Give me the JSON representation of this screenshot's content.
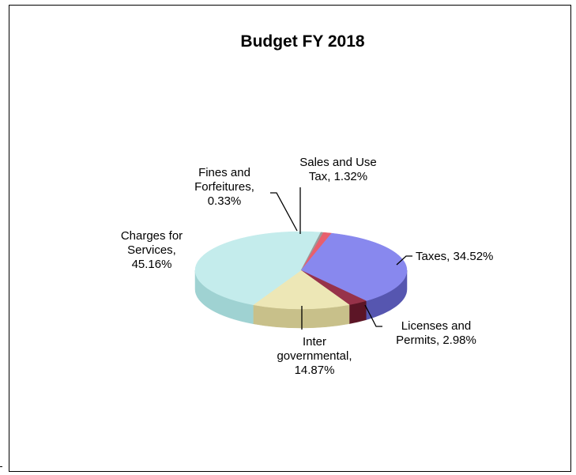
{
  "chart_data": {
    "type": "pie",
    "style": "3d",
    "title": "Budget FY 2018",
    "slices": [
      {
        "label": "Sales and Use Tax",
        "value": 1.32,
        "display": "1.32%",
        "color": "#e85f6d",
        "side": "#a8343f",
        "label_lines": [
          "Sales and Use",
          "Tax, 1.32%"
        ]
      },
      {
        "label": "Taxes",
        "value": 34.52,
        "display": "34.52%",
        "color": "#8888ee",
        "side": "#5656b0",
        "label_lines": [
          "Taxes, 34.52%"
        ]
      },
      {
        "label": "Licenses and Permits",
        "value": 2.98,
        "display": "2.98%",
        "color": "#97324a",
        "side": "#5c1526",
        "label_lines": [
          "Licenses and",
          "Permits, 2.98%"
        ]
      },
      {
        "label": "Inter governmental",
        "value": 14.87,
        "display": "14.87%",
        "color": "#ede7b6",
        "side": "#c8c08a",
        "label_lines": [
          "Inter",
          "governmental,",
          "14.87%"
        ]
      },
      {
        "label": "Charges for Services",
        "value": 45.16,
        "display": "45.16%",
        "color": "#c4ecec",
        "side": "#9fd2d2",
        "label_lines": [
          "Charges for",
          "Services,",
          "45.16%"
        ]
      },
      {
        "label": "Fines and Forfeitures",
        "value": 0.33,
        "display": "0.33%",
        "color": "#9a9a9a",
        "side": "#6a6a6a",
        "label_lines": [
          "Fines and",
          "Forfeitures,",
          "0.33%"
        ]
      }
    ],
    "legend": "none",
    "data_labels": "outside with leader lines"
  }
}
